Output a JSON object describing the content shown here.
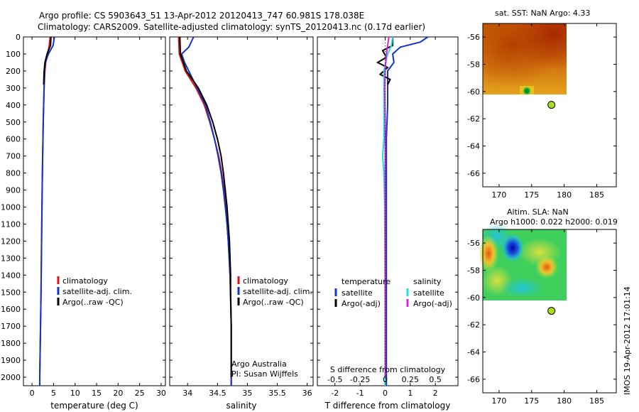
{
  "header": {
    "line1": "Argo profile: CS 5903643_51 13-Apr-2012 20120413_747 60.981S 178.038E",
    "line2": "Climatology: CARS2009. Satellite-adjusted climatology: synTS_20120413.nc (0.17d earlier)"
  },
  "footer": {
    "imos_stamp": "IMOS 19-Apr-2012 17:01:14",
    "credit_line1": "Argo Australia",
    "credit_line2": "PI: Susan Wijffels"
  },
  "colors": {
    "climatology": "#dd1111",
    "satellite": "#1133cc",
    "argo": "#000000",
    "sal_satellite": "#22dddd",
    "sal_argo": "#dd22dd",
    "float_marker": "#aadd22"
  },
  "chart_data": [
    {
      "id": "temperature",
      "type": "line",
      "xlabel": "temperature (deg C)",
      "ylabel": "",
      "xlim": [
        -2,
        31
      ],
      "ylim": [
        2050,
        0
      ],
      "xticks": [
        0,
        5,
        10,
        15,
        20,
        25,
        30
      ],
      "yticks": [
        0,
        100,
        200,
        300,
        400,
        500,
        600,
        700,
        800,
        900,
        1000,
        1100,
        1200,
        1300,
        1400,
        1500,
        1600,
        1700,
        1800,
        1900,
        2000
      ],
      "legend": [
        "climatology",
        "satellite-adj. clim.",
        "Argo(..raw -QC)"
      ],
      "series": [
        {
          "name": "climatology",
          "color": "#dd1111",
          "depth": [
            0,
            50,
            100,
            150,
            200,
            300,
            500,
            800,
            1000,
            1500,
            2000,
            2050
          ],
          "values": [
            4.2,
            4.0,
            3.6,
            3.2,
            3.0,
            2.8,
            2.6,
            2.4,
            2.3,
            2.1,
            1.8,
            1.8
          ]
        },
        {
          "name": "satellite-adj. clim.",
          "color": "#1133cc",
          "depth": [
            0,
            50,
            100,
            150,
            200,
            300,
            500,
            800,
            1000,
            1500,
            2000,
            2050
          ],
          "values": [
            5.2,
            4.9,
            3.8,
            3.1,
            2.9,
            2.8,
            2.6,
            2.4,
            2.3,
            2.1,
            1.8,
            1.8
          ]
        },
        {
          "name": "Argo(..raw -QC)",
          "color": "#000000",
          "depth": [
            0,
            50,
            100,
            150,
            200,
            280
          ],
          "values": [
            4.4,
            4.3,
            3.5,
            3.0,
            2.8,
            2.7
          ]
        }
      ]
    },
    {
      "id": "salinity",
      "type": "line",
      "xlabel": "salinity",
      "ylabel": "",
      "xlim": [
        33.7,
        36.1
      ],
      "ylim": [
        2050,
        0
      ],
      "xticks": [
        34,
        34.5,
        35,
        35.5,
        36
      ],
      "legend": [
        "climatology",
        "satellite-adj. clim.",
        "Argo(..raw -QC)"
      ],
      "series": [
        {
          "name": "climatology",
          "color": "#dd1111",
          "depth": [
            0,
            100,
            200,
            300,
            400,
            500,
            600,
            700,
            800,
            900,
            1000,
            1100,
            1200,
            1400,
            1700,
            2050
          ],
          "values": [
            33.85,
            33.86,
            33.96,
            34.14,
            34.28,
            34.37,
            34.45,
            34.52,
            34.57,
            34.61,
            34.64,
            34.66,
            34.68,
            34.71,
            34.73,
            34.73
          ]
        },
        {
          "name": "satellite-adj. clim.",
          "color": "#1133cc",
          "depth": [
            0,
            60,
            100,
            150,
            200,
            300,
            400,
            500,
            600,
            700,
            800,
            900,
            1000,
            1100,
            1200,
            1400,
            1700,
            2050
          ],
          "values": [
            34.1,
            34.02,
            33.9,
            33.95,
            34.02,
            34.16,
            34.3,
            34.38,
            34.45,
            34.51,
            34.56,
            34.6,
            34.63,
            34.66,
            34.68,
            34.71,
            34.73,
            34.73
          ]
        },
        {
          "name": "Argo(..raw -QC)",
          "color": "#000000",
          "depth": [
            0,
            100,
            200,
            300,
            400,
            500,
            600,
            700,
            800,
            900,
            1000,
            1100,
            1200,
            1300,
            1400,
            1500,
            1700,
            1900,
            2000
          ],
          "values": [
            33.87,
            33.88,
            33.98,
            34.18,
            34.32,
            34.42,
            34.5,
            34.56,
            34.6,
            34.63,
            34.66,
            34.68,
            34.7,
            34.71,
            34.72,
            34.72,
            34.73,
            34.73,
            34.73
          ]
        }
      ]
    },
    {
      "id": "difference",
      "type": "line",
      "xlabel": "T difference from climatology",
      "x2label": "S difference from climatology",
      "ylabel": "",
      "xlim": [
        -2.7,
        2.9
      ],
      "ylim": [
        2050,
        0
      ],
      "xticks": [
        -2,
        -1,
        0,
        1,
        2
      ],
      "x2ticks": [
        -0.5,
        -0.25,
        0,
        0.25,
        0.5
      ],
      "x2ticklabels": [
        "-0.5",
        "-0.25",
        "0",
        "0.25",
        "0.5"
      ],
      "legend_titles": [
        "temperature",
        "salinity"
      ],
      "series": [
        {
          "name": "satellite",
          "group": "temperature",
          "color": "#1133cc",
          "depth": [
            0,
            30,
            60,
            100,
            150,
            200,
            300,
            400,
            600,
            800,
            1000,
            1500,
            2000,
            2050
          ],
          "values": [
            1.7,
            1.4,
            0.6,
            0.3,
            0.35,
            0.1,
            0.1,
            0.1,
            0.05,
            0.05,
            0.05,
            0.05,
            0.05,
            0.05
          ]
        },
        {
          "name": "Argo(-adj)",
          "group": "temperature",
          "color": "#000000",
          "depth": [
            0,
            50,
            80,
            120,
            150,
            180,
            220,
            250,
            280
          ],
          "values": [
            0.3,
            0.3,
            -0.1,
            0.05,
            -0.3,
            0.1,
            -0.2,
            0.2,
            0.1
          ]
        },
        {
          "name": "satellite",
          "group": "salinity",
          "color": "#22dddd",
          "depth": [
            0,
            50,
            100,
            200,
            300,
            400,
            600,
            700,
            800,
            1000,
            1500,
            2000,
            2050
          ],
          "values": [
            0.3,
            0.25,
            0.1,
            -0.05,
            -0.05,
            -0.05,
            -0.05,
            -0.1,
            -0.05,
            -0.02,
            0.0,
            0.0,
            0.0
          ]
        },
        {
          "name": "Argo(-adj)",
          "group": "salinity",
          "color": "#dd22dd",
          "depth": [
            0,
            100,
            200,
            300,
            500,
            800,
            1000,
            1500,
            2000
          ],
          "values": [
            0.15,
            0.05,
            0.0,
            -0.02,
            0.0,
            0.0,
            0.0,
            0.0,
            0.0
          ]
        }
      ]
    },
    {
      "id": "sst-map",
      "type": "heatmap",
      "title": "sat. SST: NaN Argo: 4.33",
      "xlim": [
        167.5,
        188
      ],
      "ylim": [
        -67,
        -55
      ],
      "xticks": [
        170,
        175,
        180,
        185
      ],
      "yticks": [
        -56,
        -58,
        -60,
        -62,
        -64,
        -66
      ],
      "float_position": {
        "lon": 178.04,
        "lat": -60.98
      }
    },
    {
      "id": "sla-map",
      "type": "heatmap",
      "title": "Altim. SLA: NaN",
      "subtitle": "Argo h1000: 0.022 h2000: 0.019",
      "xlim": [
        167.5,
        188
      ],
      "ylim": [
        -67,
        -55
      ],
      "xticks": [
        170,
        175,
        180,
        185
      ],
      "yticks": [
        -56,
        -58,
        -60,
        -62,
        -64,
        -66
      ],
      "float_position": {
        "lon": 178.04,
        "lat": -60.98
      }
    }
  ]
}
